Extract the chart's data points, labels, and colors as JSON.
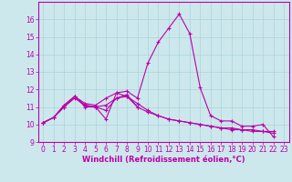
{
  "xlabel": "Windchill (Refroidissement éolien,°C)",
  "background_color": "#cce8ec",
  "line_color": "#bb00aa",
  "grid_color": "#aad4d8",
  "x": [
    0,
    1,
    2,
    3,
    4,
    5,
    6,
    7,
    8,
    9,
    10,
    11,
    12,
    13,
    14,
    15,
    16,
    17,
    18,
    19,
    20,
    21,
    22,
    23
  ],
  "series1": [
    10.1,
    10.4,
    11.1,
    11.6,
    11.1,
    11.0,
    10.3,
    11.8,
    11.9,
    11.5,
    13.5,
    14.7,
    15.5,
    16.3,
    15.2,
    12.1,
    10.5,
    10.2,
    10.2,
    9.9,
    9.9,
    10.0,
    9.3,
    null
  ],
  "series2": [
    10.1,
    10.4,
    11.1,
    11.6,
    11.0,
    11.0,
    10.8,
    11.5,
    11.7,
    11.0,
    null,
    null,
    null,
    null,
    null,
    null,
    null,
    null,
    null,
    null,
    null,
    null,
    null,
    null
  ],
  "series3": [
    10.1,
    10.4,
    11.0,
    11.6,
    11.2,
    11.1,
    11.5,
    11.8,
    11.6,
    11.2,
    10.8,
    10.5,
    10.3,
    10.2,
    10.1,
    10.0,
    9.9,
    9.8,
    9.8,
    9.7,
    9.7,
    9.6,
    9.6,
    null
  ],
  "series4": [
    10.1,
    10.4,
    11.0,
    11.5,
    11.1,
    11.0,
    11.1,
    11.5,
    11.6,
    11.0,
    10.7,
    10.5,
    10.3,
    10.2,
    10.1,
    10.0,
    9.9,
    9.8,
    9.7,
    9.7,
    9.6,
    9.6,
    9.5,
    null
  ],
  "ylim": [
    9.0,
    17.0
  ],
  "xlim_min": -0.5,
  "xlim_max": 23.5,
  "yticks": [
    9,
    10,
    11,
    12,
    13,
    14,
    15,
    16
  ],
  "xticks": [
    0,
    1,
    2,
    3,
    4,
    5,
    6,
    7,
    8,
    9,
    10,
    11,
    12,
    13,
    14,
    15,
    16,
    17,
    18,
    19,
    20,
    21,
    22,
    23
  ],
  "tick_fontsize": 5.5,
  "xlabel_fontsize": 6.0,
  "marker_size": 3.0,
  "linewidth": 0.8
}
